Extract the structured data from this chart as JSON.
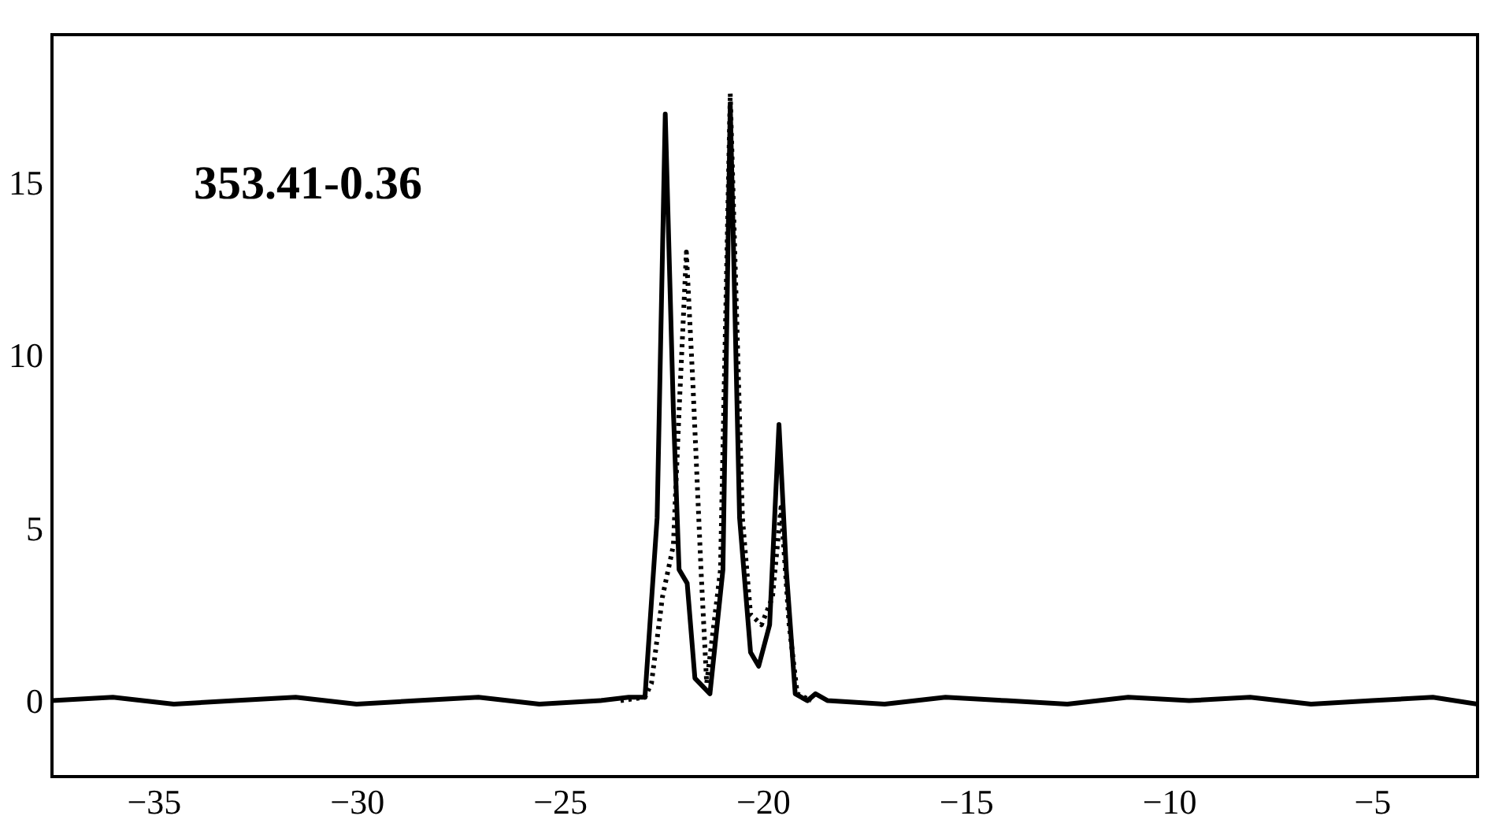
{
  "chart_data": {
    "type": "line",
    "xlim": [
      -37.5,
      -2.4
    ],
    "ylim": [
      -2.2,
      19.3
    ],
    "xticks": [
      -35,
      -30,
      -25,
      -20,
      -15,
      -10,
      -5
    ],
    "yticks": [
      0,
      5,
      10,
      15
    ],
    "grid": false,
    "marker": "none",
    "annotations": [
      "353.41-0.36"
    ],
    "series": [
      {
        "color": "#000000",
        "line_style": "solid",
        "x": [
          -37.5,
          -36,
          -34.5,
          -33,
          -31.5,
          -30,
          -28.5,
          -27,
          -25.5,
          -24,
          -23.3,
          -22.9,
          -22.6,
          -22.4,
          -22.2,
          -22.06,
          -21.86,
          -21.67,
          -21.3,
          -20.98,
          -20.8,
          -20.57,
          -20.3,
          -20.1,
          -19.83,
          -19.6,
          -19.42,
          -19.2,
          -18.9,
          -18.7,
          -18.4,
          -17,
          -15.5,
          -14,
          -12.5,
          -11,
          -9.5,
          -8,
          -6.5,
          -5,
          -3.5,
          -2.4
        ],
        "values": [
          0.0,
          0.1,
          -0.1,
          0.0,
          0.1,
          -0.1,
          0.0,
          0.1,
          -0.1,
          0.0,
          0.1,
          0.1,
          5.3,
          17.0,
          8.4,
          3.8,
          3.4,
          0.65,
          0.2,
          3.8,
          17.3,
          5.3,
          1.4,
          1.0,
          2.2,
          8.0,
          3.8,
          0.2,
          0.0,
          0.2,
          0.0,
          -0.1,
          0.1,
          0.0,
          -0.1,
          0.1,
          0.0,
          0.1,
          -0.1,
          0.0,
          0.1,
          -0.1
        ]
      },
      {
        "color": "#000000",
        "line_style": "dotted",
        "x": [
          -23.5,
          -22.9,
          -22.74,
          -22.47,
          -22.2,
          -22.06,
          -21.88,
          -21.72,
          -21.52,
          -21.38,
          -21.04,
          -20.8,
          -20.5,
          -20.3,
          -20.03,
          -19.76,
          -19.55,
          -19.35,
          -19.15,
          -18.8
        ],
        "values": [
          0.0,
          0.1,
          0.5,
          3.0,
          4.5,
          8.4,
          13.0,
          9.2,
          3.8,
          0.5,
          3.8,
          17.6,
          5.3,
          2.5,
          2.2,
          3.0,
          5.6,
          2.2,
          0.2,
          0.0
        ]
      }
    ]
  }
}
